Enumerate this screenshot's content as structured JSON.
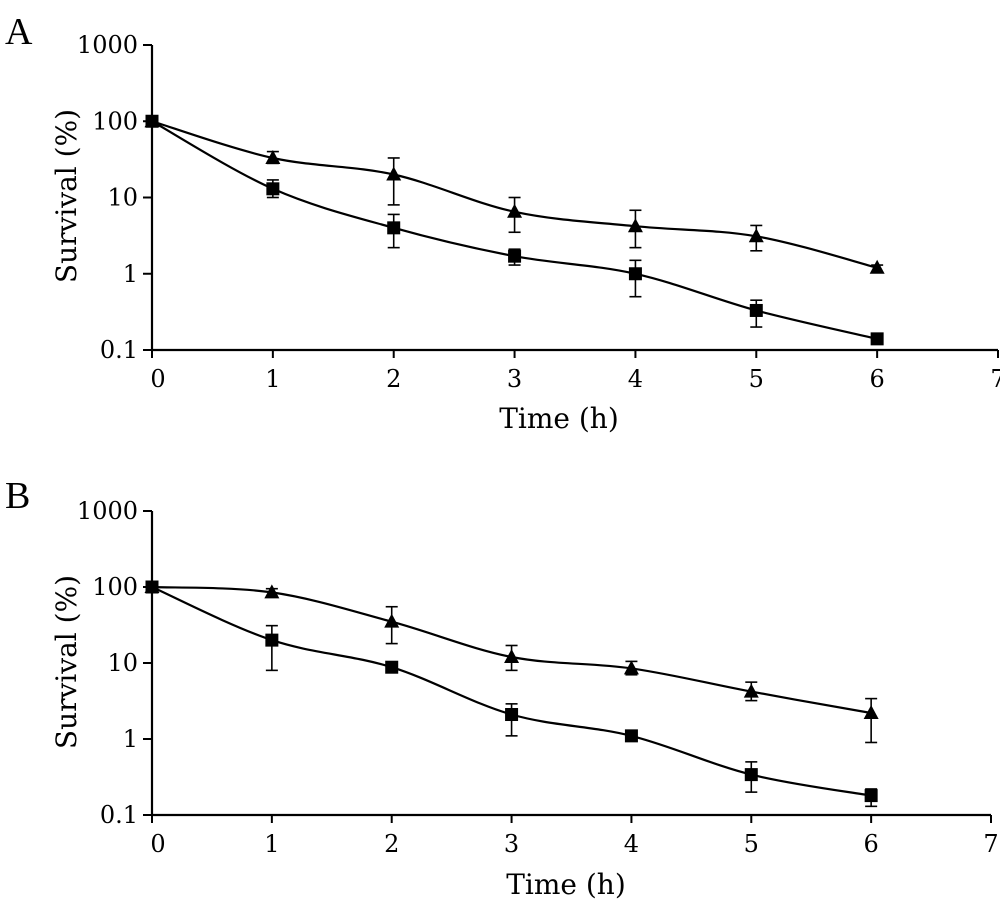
{
  "chart_data": [
    {
      "type": "line",
      "panel_label": "A",
      "xlabel": "Time (h)",
      "ylabel": "Survival (%)",
      "xlim": [
        0,
        7
      ],
      "ylim": [
        0.1,
        1000
      ],
      "yscale": "log",
      "x_ticks": [
        "0",
        "1",
        "2",
        "3",
        "4",
        "5",
        "6",
        "7"
      ],
      "y_ticks": [
        "0.1",
        "1",
        "10",
        "100",
        "1000"
      ],
      "grid": false,
      "legend": "none",
      "x": [
        0,
        1,
        2,
        3,
        4,
        5,
        6
      ],
      "series": [
        {
          "marker": "triangle",
          "values": [
            100,
            33,
            20,
            6.5,
            4.2,
            3.1,
            1.2
          ],
          "err_low": [
            95,
            28,
            8,
            3.5,
            2.2,
            2.0,
            1.05
          ],
          "err_high": [
            105,
            40,
            33,
            10,
            6.8,
            4.3,
            1.3
          ]
        },
        {
          "marker": "square",
          "values": [
            100,
            13,
            4,
            1.7,
            1.0,
            0.33,
            0.14
          ],
          "err_low": [
            95,
            10,
            2.2,
            1.3,
            0.5,
            0.2,
            0.13
          ],
          "err_high": [
            105,
            17,
            6,
            2.1,
            1.5,
            0.45,
            0.155
          ]
        }
      ]
    },
    {
      "type": "line",
      "panel_label": "B",
      "xlabel": "Time (h)",
      "ylabel": "Survival (%)",
      "xlim": [
        0,
        7
      ],
      "ylim": [
        0.1,
        1000
      ],
      "yscale": "log",
      "x_ticks": [
        "0",
        "1",
        "2",
        "3",
        "4",
        "5",
        "6",
        "7"
      ],
      "y_ticks": [
        "0.1",
        "1",
        "10",
        "100",
        "1000"
      ],
      "grid": false,
      "legend": "none",
      "x": [
        0,
        1,
        2,
        3,
        4,
        5,
        6
      ],
      "series": [
        {
          "marker": "triangle",
          "values": [
            100,
            85,
            35,
            12,
            8.5,
            4.2,
            2.2
          ],
          "err_low": [
            95,
            75,
            18,
            8,
            7,
            3.2,
            0.9
          ],
          "err_high": [
            105,
            95,
            55,
            17,
            10.5,
            5.6,
            3.4
          ]
        },
        {
          "marker": "square",
          "values": [
            100,
            20,
            8.8,
            2.1,
            1.1,
            0.34,
            0.18
          ],
          "err_low": [
            95,
            8,
            8,
            1.1,
            0.95,
            0.2,
            0.13
          ],
          "err_high": [
            105,
            31,
            9.6,
            2.9,
            1.25,
            0.5,
            0.22
          ]
        }
      ]
    }
  ]
}
